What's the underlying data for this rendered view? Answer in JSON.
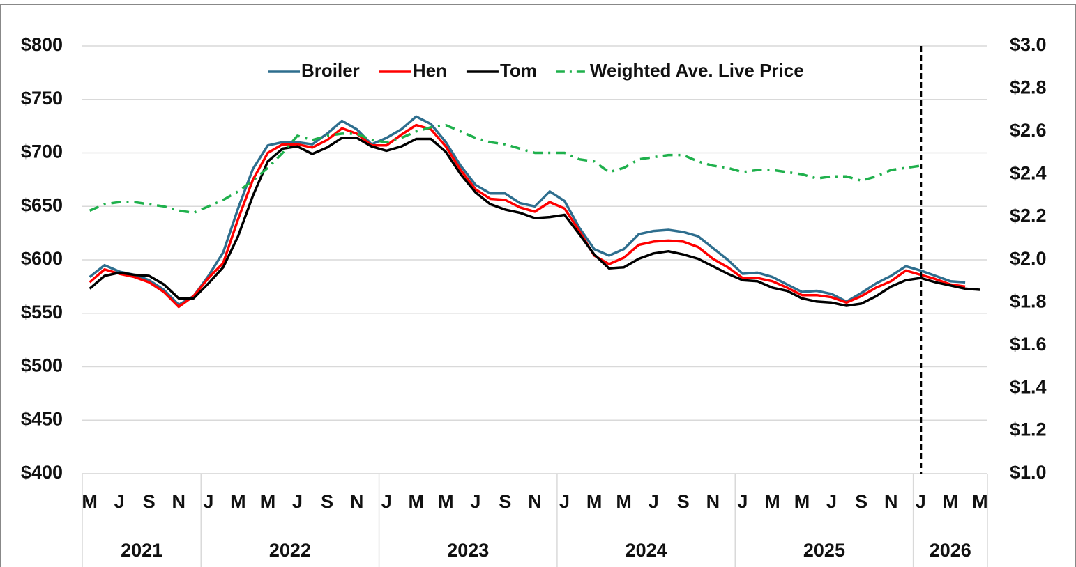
{
  "chart_data": {
    "type": "line",
    "category_groups": [
      {
        "label": "2021",
        "categories": [
          "M",
          null,
          "J",
          null,
          "S",
          null,
          "N",
          null
        ]
      },
      {
        "label": "2022",
        "categories": [
          "J",
          null,
          "M",
          null,
          "M",
          null,
          "J",
          null,
          "S",
          null,
          "N",
          null
        ]
      },
      {
        "label": "2023",
        "categories": [
          "J",
          null,
          "M",
          null,
          "M",
          null,
          "J",
          null,
          "S",
          null,
          "N",
          null
        ]
      },
      {
        "label": "2024",
        "categories": [
          "J",
          null,
          "M",
          null,
          "M",
          null,
          "J",
          null,
          "S",
          null,
          "N",
          null
        ]
      },
      {
        "label": "2025",
        "categories": [
          "J",
          null,
          "M",
          null,
          "M",
          null,
          "J",
          null,
          "S",
          null,
          "N",
          null
        ]
      },
      {
        "label": "2026",
        "categories": [
          "J",
          null,
          "M",
          null,
          "M"
        ]
      }
    ],
    "series": [
      {
        "name": "Broiler",
        "color": "#2e6e8e",
        "style": "solid",
        "values": [
          584,
          595,
          589,
          586,
          581,
          572,
          558,
          566,
          585,
          607,
          648,
          685,
          707,
          710,
          710,
          708,
          718,
          730,
          722,
          708,
          714,
          722,
          734,
          727,
          710,
          688,
          670,
          662,
          662,
          653,
          650,
          664,
          655,
          630,
          610,
          604,
          610,
          624,
          627,
          628,
          626,
          622,
          611,
          600,
          587,
          588,
          584,
          577,
          570,
          571,
          568,
          561,
          569,
          578,
          585,
          594,
          590,
          585,
          580,
          579,
          null
        ]
      },
      {
        "name": "Hen",
        "color": "#ff0000",
        "style": "solid",
        "values": [
          579,
          591,
          587,
          584,
          579,
          570,
          556,
          566,
          583,
          597,
          638,
          675,
          700,
          708,
          708,
          705,
          712,
          723,
          718,
          707,
          707,
          717,
          726,
          722,
          706,
          684,
          666,
          657,
          656,
          649,
          645,
          654,
          648,
          627,
          604,
          596,
          602,
          614,
          617,
          618,
          617,
          612,
          601,
          593,
          583,
          583,
          580,
          574,
          567,
          567,
          565,
          560,
          566,
          574,
          580,
          590,
          586,
          582,
          577,
          575,
          null
        ]
      },
      {
        "name": "Tom",
        "color": "#000000",
        "style": "solid",
        "values": [
          573,
          585,
          588,
          586,
          585,
          577,
          564,
          564,
          578,
          593,
          622,
          660,
          692,
          704,
          706,
          699,
          705,
          714,
          714,
          706,
          702,
          706,
          713,
          713,
          701,
          680,
          663,
          652,
          647,
          644,
          639,
          640,
          642,
          624,
          605,
          592,
          593,
          601,
          606,
          608,
          605,
          601,
          594,
          587,
          581,
          580,
          574,
          571,
          564,
          561,
          560,
          557,
          559,
          566,
          575,
          581,
          583,
          579,
          576,
          573,
          572
        ]
      },
      {
        "name": "Weighted Ave. Live Price",
        "color": "#1fb04c",
        "style": "dashdot",
        "axis": "y2",
        "values": [
          2.23,
          2.26,
          2.27,
          2.27,
          2.26,
          2.25,
          2.23,
          2.22,
          2.25,
          2.28,
          2.32,
          2.37,
          2.43,
          2.5,
          2.58,
          2.56,
          2.58,
          2.59,
          2.59,
          2.56,
          2.55,
          2.57,
          2.6,
          2.62,
          2.63,
          2.6,
          2.57,
          2.55,
          2.54,
          2.52,
          2.5,
          2.5,
          2.5,
          2.47,
          2.46,
          2.41,
          2.43,
          2.47,
          2.48,
          2.49,
          2.49,
          2.46,
          2.44,
          2.43,
          2.41,
          2.42,
          2.42,
          2.41,
          2.4,
          2.38,
          2.39,
          2.39,
          2.37,
          2.39,
          2.42,
          2.43,
          2.44,
          null,
          null,
          null,
          null
        ]
      }
    ],
    "ylim": [
      400,
      800
    ],
    "yticks": [
      {
        "value": 400,
        "label": "$400"
      },
      {
        "value": 450,
        "label": "$450"
      },
      {
        "value": 500,
        "label": "$500"
      },
      {
        "value": 550,
        "label": "$550"
      },
      {
        "value": 600,
        "label": "$600"
      },
      {
        "value": 650,
        "label": "$650"
      },
      {
        "value": 700,
        "label": "$700"
      },
      {
        "value": 750,
        "label": "$750"
      },
      {
        "value": 800,
        "label": "$800"
      }
    ],
    "y2lim": [
      1.0,
      3.0
    ],
    "y2ticks": [
      {
        "value": 1.0,
        "label": "$1.0"
      },
      {
        "value": 1.2,
        "label": "$1.2"
      },
      {
        "value": 1.4,
        "label": "$1.4"
      },
      {
        "value": 1.6,
        "label": "$1.6"
      },
      {
        "value": 1.8,
        "label": "$1.8"
      },
      {
        "value": 2.0,
        "label": "$2.0"
      },
      {
        "value": 2.2,
        "label": "$2.2"
      },
      {
        "value": 2.4,
        "label": "$2.4"
      },
      {
        "value": 2.6,
        "label": "$2.6"
      },
      {
        "value": 2.8,
        "label": "$2.8"
      },
      {
        "value": 3.0,
        "label": "$3.0"
      }
    ],
    "grid": true,
    "legend": "top"
  }
}
